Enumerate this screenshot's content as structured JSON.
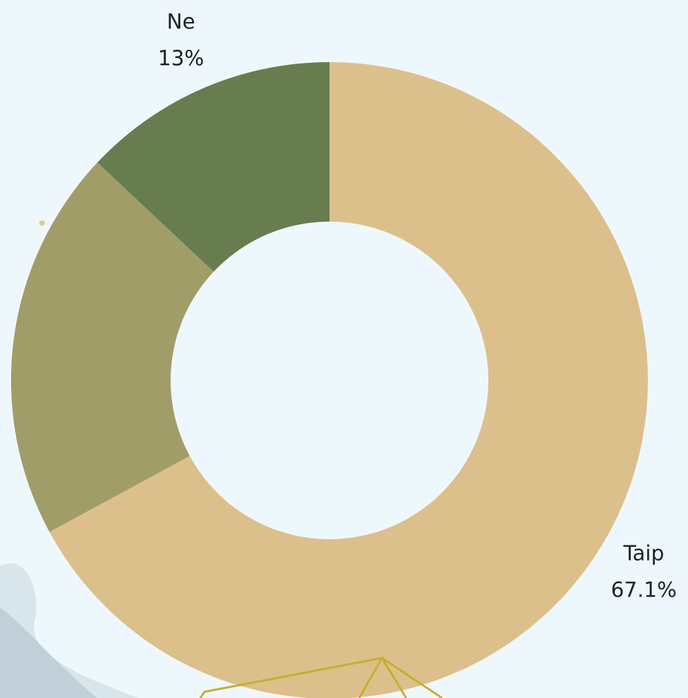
{
  "chart_data": {
    "type": "donut",
    "categories": [
      "Taip",
      null,
      "Ne"
    ],
    "values": [
      67.1,
      19.9,
      13
    ],
    "value_labels": [
      "67.1%",
      null,
      "13%"
    ],
    "colors": [
      "#dbc08c",
      "#a19d69",
      "#677d4f"
    ]
  }
}
